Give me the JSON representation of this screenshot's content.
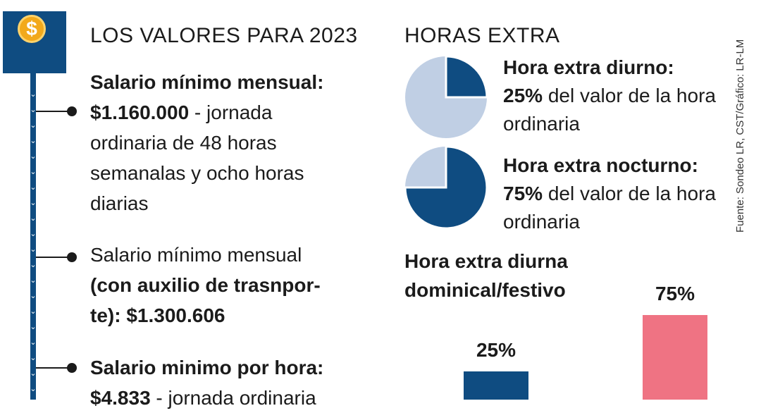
{
  "icon": {
    "symbol": "$",
    "name": "dollar-coin-icon"
  },
  "left": {
    "title": "LOS VALORES PARA 2023",
    "item1": {
      "heading": "Salario mínimo mensual:",
      "value": "$1.160.000",
      "rest_line1": " - jornada",
      "line2": "ordinaria de 48 horas",
      "line3": "semanalas y ocho horas",
      "line4": "diarias"
    },
    "item2": {
      "line1": "Salario mínimo mensual",
      "line2": "(con auxilio de trasnpor-",
      "line3": "te): $1.300.606"
    },
    "item3": {
      "heading": "Salario minimo por hora:",
      "value": "$4.833",
      "rest": " - jornada ordinaria"
    }
  },
  "right": {
    "title": "HORAS EXTRA",
    "diurno": {
      "heading": "Hora extra diurno:",
      "pct": "25%",
      "rest_line1": " del valor de la hora",
      "line2": "ordinaria"
    },
    "nocturno": {
      "heading": "Hora extra nocturno:",
      "pct": "75%",
      "rest_line1": " del valor de la hora",
      "line2": "ordinaria"
    },
    "sunday": {
      "line1": "Hora extra diurna",
      "line2": "dominical/festivo"
    }
  },
  "chart_data": [
    {
      "type": "pie",
      "values": [
        25,
        75
      ],
      "highlight_color": "#0f4c81",
      "rest_color": "#c0cfe4"
    },
    {
      "type": "pie",
      "values": [
        75,
        25
      ],
      "highlight_color": "#0f4c81",
      "rest_color": "#c0cfe4"
    },
    {
      "type": "bar",
      "values": [
        25,
        75
      ],
      "labels": [
        "25%",
        "75%"
      ],
      "colors": [
        "#0f4c81",
        "#ef7383"
      ],
      "ylim": [
        0,
        100
      ]
    }
  ],
  "source": "Fuente: Sondeo LR, CST/Gráfico: LR-LM",
  "colors": {
    "navy": "#0f4c81",
    "light_blue": "#c0cfe4",
    "pink": "#ef7383",
    "gold": "#f2a91b"
  }
}
